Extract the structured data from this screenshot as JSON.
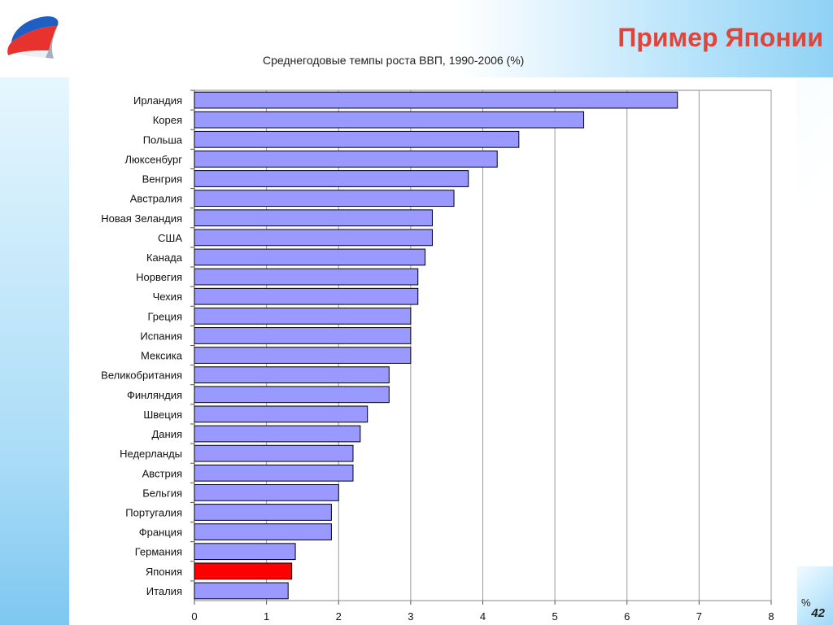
{
  "slide": {
    "title": "Пример Японии",
    "subtitle": "Среднегодовые темпы роста ВВП, 1990-2006 (%)",
    "page_number": "42",
    "unit_label": "%"
  },
  "colors": {
    "bar": "#9999ff",
    "highlight": "#ff0000",
    "title": "#e0453a"
  },
  "chart_data": {
    "type": "bar",
    "orientation": "horizontal",
    "title": "Среднегодовые темпы роста ВВП, 1990-2006 (%)",
    "xlabel": "%",
    "ylabel": "",
    "xlim": [
      0,
      8
    ],
    "x_ticks": [
      0,
      1,
      2,
      3,
      4,
      5,
      6,
      7,
      8
    ],
    "grid": "vertical",
    "highlight_category": "Япония",
    "categories": [
      "Ирландия",
      "Корея",
      "Польша",
      "Люксенбург",
      "Венгрия",
      "Австралия",
      "Новая Зеландия",
      "США",
      "Канада",
      "Норвегия",
      "Чехия",
      "Греция",
      "Испания",
      "Мексика",
      "Великобритания",
      "Финляндия",
      "Швеция",
      "Дания",
      "Недерланды",
      "Австрия",
      "Бельгия",
      "Португалия",
      "Франция",
      "Германия",
      "Япония",
      "Италия"
    ],
    "values": [
      6.7,
      5.4,
      4.5,
      4.2,
      3.8,
      3.6,
      3.3,
      3.3,
      3.2,
      3.1,
      3.1,
      3.0,
      3.0,
      3.0,
      2.7,
      2.7,
      2.4,
      2.3,
      2.2,
      2.2,
      2.0,
      1.9,
      1.9,
      1.4,
      1.35,
      1.3
    ]
  }
}
